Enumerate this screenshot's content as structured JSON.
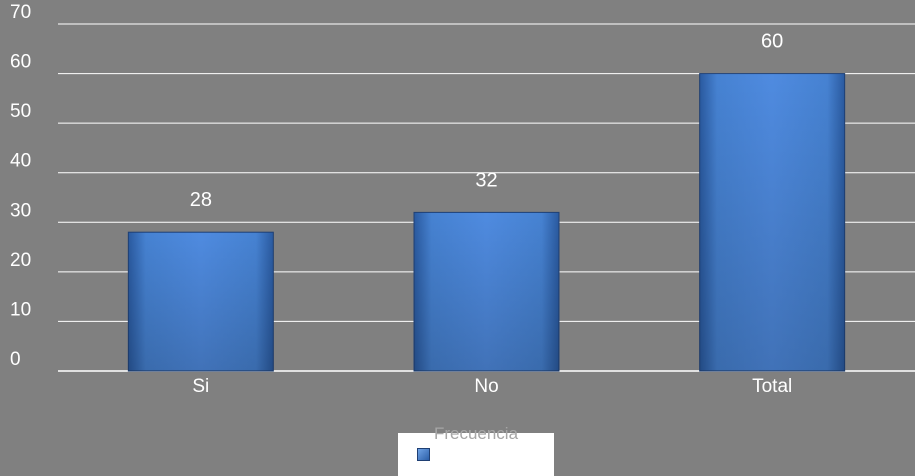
{
  "chart_data": {
    "type": "bar",
    "categories": [
      "Si",
      "No",
      "Total"
    ],
    "series": [
      {
        "name": "Frecuencia",
        "values": [
          28,
          32,
          60
        ]
      }
    ],
    "ylim": [
      0,
      70
    ],
    "yticks": [
      0,
      10,
      20,
      30,
      40,
      50,
      60,
      70
    ],
    "grid": true,
    "legend_position": "bottom",
    "data_labels": true,
    "colors": {
      "background": "#808080",
      "bar_light": "#5b95e0",
      "bar_dark": "#2a5aa0",
      "bar_edge": "#1f3f73",
      "gridline": "#ffffff",
      "text": "#ffffff",
      "legend_box": "#ffffff"
    }
  }
}
